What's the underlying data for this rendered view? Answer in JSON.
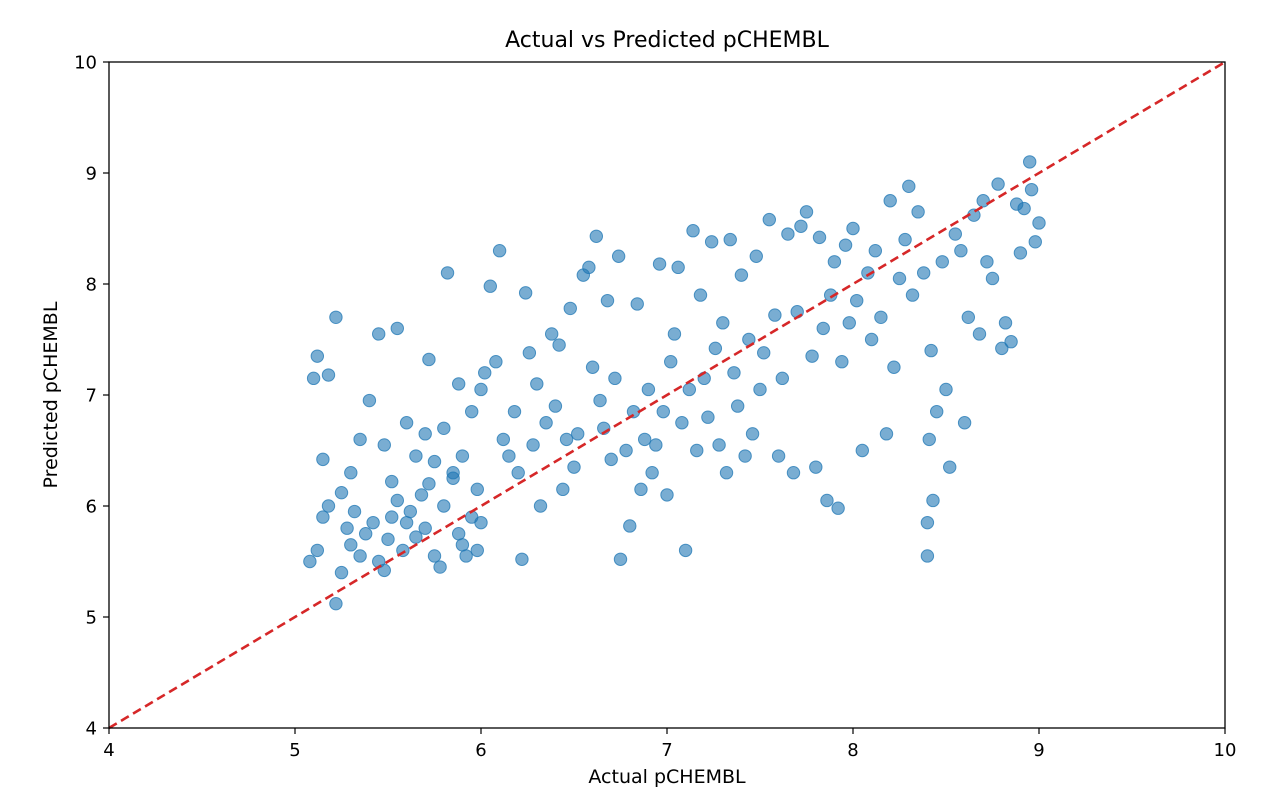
{
  "colors": {
    "points": "#1f77b4",
    "identity_line": "#d62728",
    "axes": "#000000",
    "background": "#ffffff"
  },
  "chart_data": {
    "type": "scatter",
    "title": "Actual vs Predicted pCHEMBL",
    "xlabel": "Actual pCHEMBL",
    "ylabel": "Predicted pCHEMBL",
    "xlim": [
      4,
      10
    ],
    "ylim": [
      4,
      10
    ],
    "xticks": [
      "4",
      "5",
      "6",
      "7",
      "8",
      "9",
      "10"
    ],
    "yticks": [
      "4",
      "5",
      "6",
      "7",
      "8",
      "9",
      "10"
    ],
    "grid": false,
    "legend": "none",
    "reference_line": {
      "from": [
        4,
        4
      ],
      "to": [
        10,
        10
      ],
      "style": "dashed"
    },
    "points": [
      [
        5.08,
        5.5
      ],
      [
        5.12,
        5.6
      ],
      [
        5.15,
        5.9
      ],
      [
        5.18,
        6.0
      ],
      [
        5.22,
        5.12
      ],
      [
        5.25,
        5.4
      ],
      [
        5.28,
        5.8
      ],
      [
        5.3,
        5.65
      ],
      [
        5.32,
        5.95
      ],
      [
        5.35,
        5.55
      ],
      [
        5.38,
        5.75
      ],
      [
        5.42,
        5.85
      ],
      [
        5.45,
        5.5
      ],
      [
        5.48,
        5.42
      ],
      [
        5.5,
        5.7
      ],
      [
        5.52,
        5.9
      ],
      [
        5.55,
        6.05
      ],
      [
        5.58,
        5.6
      ],
      [
        5.6,
        5.85
      ],
      [
        5.62,
        5.95
      ],
      [
        5.65,
        5.72
      ],
      [
        5.68,
        6.1
      ],
      [
        5.7,
        5.8
      ],
      [
        5.72,
        6.2
      ],
      [
        5.75,
        5.55
      ],
      [
        5.78,
        5.45
      ],
      [
        5.8,
        6.0
      ],
      [
        5.85,
        6.3
      ],
      [
        5.88,
        5.75
      ],
      [
        5.9,
        5.65
      ],
      [
        5.92,
        5.55
      ],
      [
        5.95,
        5.9
      ],
      [
        5.98,
        5.6
      ],
      [
        6.0,
        5.85
      ],
      [
        5.1,
        7.15
      ],
      [
        5.12,
        7.35
      ],
      [
        5.15,
        6.42
      ],
      [
        5.18,
        7.18
      ],
      [
        5.22,
        7.7
      ],
      [
        5.25,
        6.12
      ],
      [
        5.3,
        6.3
      ],
      [
        5.35,
        6.6
      ],
      [
        5.4,
        6.95
      ],
      [
        5.45,
        7.55
      ],
      [
        5.48,
        6.55
      ],
      [
        5.52,
        6.22
      ],
      [
        5.55,
        7.6
      ],
      [
        5.6,
        6.75
      ],
      [
        5.65,
        6.45
      ],
      [
        5.7,
        6.65
      ],
      [
        5.72,
        7.32
      ],
      [
        5.75,
        6.4
      ],
      [
        5.8,
        6.7
      ],
      [
        5.82,
        8.1
      ],
      [
        5.85,
        6.25
      ],
      [
        5.88,
        7.1
      ],
      [
        5.9,
        6.45
      ],
      [
        5.95,
        6.85
      ],
      [
        5.98,
        6.15
      ],
      [
        6.0,
        7.05
      ],
      [
        6.02,
        7.2
      ],
      [
        6.05,
        7.98
      ],
      [
        6.08,
        7.3
      ],
      [
        6.1,
        8.3
      ],
      [
        6.12,
        6.6
      ],
      [
        6.15,
        6.45
      ],
      [
        6.18,
        6.85
      ],
      [
        6.2,
        6.3
      ],
      [
        6.22,
        5.52
      ],
      [
        6.24,
        7.92
      ],
      [
        6.26,
        7.38
      ],
      [
        6.28,
        6.55
      ],
      [
        6.3,
        7.1
      ],
      [
        6.32,
        6.0
      ],
      [
        6.35,
        6.75
      ],
      [
        6.38,
        7.55
      ],
      [
        6.4,
        6.9
      ],
      [
        6.42,
        7.45
      ],
      [
        6.44,
        6.15
      ],
      [
        6.46,
        6.6
      ],
      [
        6.48,
        7.78
      ],
      [
        6.5,
        6.35
      ],
      [
        6.52,
        6.65
      ],
      [
        6.55,
        8.08
      ],
      [
        6.58,
        8.15
      ],
      [
        6.6,
        7.25
      ],
      [
        6.62,
        8.43
      ],
      [
        6.64,
        6.95
      ],
      [
        6.66,
        6.7
      ],
      [
        6.68,
        7.85
      ],
      [
        6.7,
        6.42
      ],
      [
        6.72,
        7.15
      ],
      [
        6.74,
        8.25
      ],
      [
        6.75,
        5.52
      ],
      [
        6.78,
        6.5
      ],
      [
        6.8,
        5.82
      ],
      [
        6.82,
        6.85
      ],
      [
        6.84,
        7.82
      ],
      [
        6.86,
        6.15
      ],
      [
        6.88,
        6.6
      ],
      [
        6.9,
        7.05
      ],
      [
        6.92,
        6.3
      ],
      [
        6.94,
        6.55
      ],
      [
        6.96,
        8.18
      ],
      [
        6.98,
        6.85
      ],
      [
        7.0,
        6.1
      ],
      [
        7.02,
        7.3
      ],
      [
        7.04,
        7.55
      ],
      [
        7.06,
        8.15
      ],
      [
        7.08,
        6.75
      ],
      [
        7.1,
        5.6
      ],
      [
        7.12,
        7.05
      ],
      [
        7.14,
        8.48
      ],
      [
        7.16,
        6.5
      ],
      [
        7.18,
        7.9
      ],
      [
        7.2,
        7.15
      ],
      [
        7.22,
        6.8
      ],
      [
        7.24,
        8.38
      ],
      [
        7.26,
        7.42
      ],
      [
        7.28,
        6.55
      ],
      [
        7.3,
        7.65
      ],
      [
        7.32,
        6.3
      ],
      [
        7.34,
        8.4
      ],
      [
        7.36,
        7.2
      ],
      [
        7.38,
        6.9
      ],
      [
        7.4,
        8.08
      ],
      [
        7.42,
        6.45
      ],
      [
        7.44,
        7.5
      ],
      [
        7.46,
        6.65
      ],
      [
        7.48,
        8.25
      ],
      [
        7.5,
        7.05
      ],
      [
        7.52,
        7.38
      ],
      [
        7.55,
        8.58
      ],
      [
        7.58,
        7.72
      ],
      [
        7.6,
        6.45
      ],
      [
        7.62,
        7.15
      ],
      [
        7.65,
        8.45
      ],
      [
        7.68,
        6.3
      ],
      [
        7.7,
        7.75
      ],
      [
        7.72,
        8.52
      ],
      [
        7.75,
        8.65
      ],
      [
        7.78,
        7.35
      ],
      [
        7.8,
        6.35
      ],
      [
        7.82,
        8.42
      ],
      [
        7.84,
        7.6
      ],
      [
        7.86,
        6.05
      ],
      [
        7.88,
        7.9
      ],
      [
        7.9,
        8.2
      ],
      [
        7.92,
        5.98
      ],
      [
        7.94,
        7.3
      ],
      [
        7.96,
        8.35
      ],
      [
        7.98,
        7.65
      ],
      [
        8.0,
        8.5
      ],
      [
        8.02,
        7.85
      ],
      [
        8.05,
        6.5
      ],
      [
        8.08,
        8.1
      ],
      [
        8.1,
        7.5
      ],
      [
        8.12,
        8.3
      ],
      [
        8.15,
        7.7
      ],
      [
        8.18,
        6.65
      ],
      [
        8.2,
        8.75
      ],
      [
        8.22,
        7.25
      ],
      [
        8.25,
        8.05
      ],
      [
        8.28,
        8.4
      ],
      [
        8.3,
        8.88
      ],
      [
        8.32,
        7.9
      ],
      [
        8.35,
        8.65
      ],
      [
        8.38,
        8.1
      ],
      [
        8.4,
        5.55
      ],
      [
        8.4,
        5.85
      ],
      [
        8.41,
        6.6
      ],
      [
        8.42,
        7.4
      ],
      [
        8.43,
        6.05
      ],
      [
        8.45,
        6.85
      ],
      [
        8.48,
        8.2
      ],
      [
        8.5,
        7.05
      ],
      [
        8.52,
        6.35
      ],
      [
        8.55,
        8.45
      ],
      [
        8.58,
        8.3
      ],
      [
        8.6,
        6.75
      ],
      [
        8.62,
        7.7
      ],
      [
        8.65,
        8.62
      ],
      [
        8.68,
        7.55
      ],
      [
        8.7,
        8.75
      ],
      [
        8.72,
        8.2
      ],
      [
        8.75,
        8.05
      ],
      [
        8.78,
        8.9
      ],
      [
        8.8,
        7.42
      ],
      [
        8.82,
        7.65
      ],
      [
        8.85,
        7.48
      ],
      [
        8.88,
        8.72
      ],
      [
        8.9,
        8.28
      ],
      [
        8.92,
        8.68
      ],
      [
        8.95,
        9.1
      ],
      [
        8.96,
        8.85
      ],
      [
        8.98,
        8.38
      ],
      [
        9.0,
        8.55
      ]
    ]
  }
}
